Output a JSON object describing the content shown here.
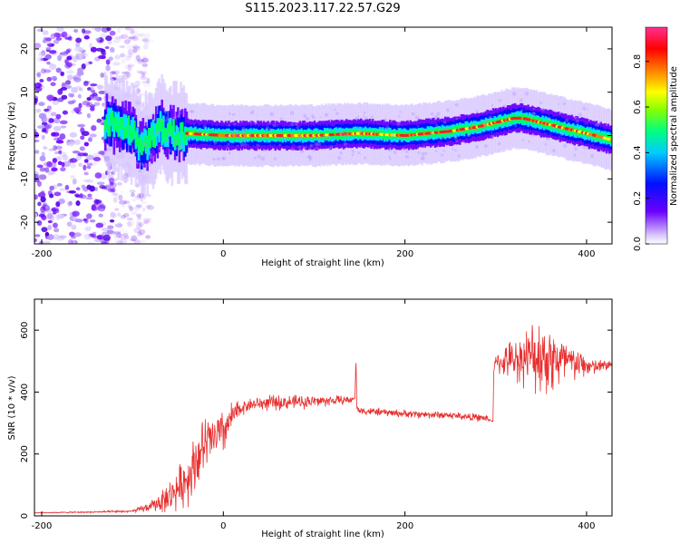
{
  "title": "S115.2023.117.22.57.G29",
  "chart_data": [
    {
      "type": "heatmap",
      "xlabel": "Height of straight line (km)",
      "ylabel": "Frequency (Hz)",
      "xlim": [
        -208,
        428
      ],
      "ylim": [
        -25,
        25
      ],
      "xticks": [
        -200,
        0,
        200,
        400
      ],
      "yticks": [
        -20,
        -10,
        0,
        10,
        20
      ],
      "grid": false,
      "colorbar": {
        "label": "Normalized spectral amplitude",
        "range": [
          0,
          0.95
        ],
        "ticks": [
          "0.0",
          "0.2",
          "0.4",
          "0.6",
          "0.8"
        ],
        "colors": [
          "#ffffff",
          "#7a00ff",
          "#0000ff",
          "#00e0ff",
          "#00ff40",
          "#ffff00",
          "#ff0000",
          "#ff3090"
        ]
      },
      "ridge": {
        "x": [
          -130,
          -100,
          -90,
          -80,
          -70,
          -60,
          -50,
          -40,
          0,
          50,
          100,
          150,
          200,
          250,
          280,
          300,
          310,
          320,
          330,
          350,
          370,
          390,
          410,
          428
        ],
        "y": [
          3,
          1,
          -3,
          -1,
          2,
          1,
          0,
          0.5,
          0,
          0,
          0,
          0.5,
          0,
          1,
          2,
          3,
          3.5,
          4,
          4,
          3,
          2,
          1,
          0,
          -1
        ]
      },
      "noise_region_x": [
        -208,
        -120
      ]
    },
    {
      "type": "line",
      "xlabel": "Height of straight line (km)",
      "ylabel": "SNR (10 * v/v)",
      "xlim": [
        -208,
        428
      ],
      "ylim": [
        0,
        700
      ],
      "xticks": [
        -200,
        0,
        200,
        400
      ],
      "yticks": [
        0,
        200,
        400,
        600
      ],
      "color": "#e83030",
      "series_x": [
        -208,
        -150,
        -100,
        -80,
        -60,
        -40,
        -30,
        -20,
        -10,
        0,
        10,
        20,
        30,
        50,
        100,
        140,
        145,
        146,
        147,
        150,
        200,
        250,
        290,
        297,
        298,
        310,
        330,
        350,
        370,
        390,
        410,
        428
      ],
      "series_y": [
        10,
        12,
        15,
        30,
        60,
        120,
        180,
        230,
        250,
        270,
        320,
        350,
        360,
        365,
        370,
        375,
        380,
        520,
        350,
        340,
        330,
        325,
        315,
        305,
        490,
        500,
        510,
        520,
        500,
        490,
        480,
        490
      ],
      "spread": [
        2,
        3,
        5,
        20,
        60,
        100,
        120,
        110,
        100,
        90,
        60,
        30,
        25,
        30,
        25,
        15,
        0,
        0,
        10,
        15,
        15,
        15,
        15,
        0,
        30,
        60,
        100,
        160,
        120,
        60,
        30,
        20
      ]
    }
  ]
}
